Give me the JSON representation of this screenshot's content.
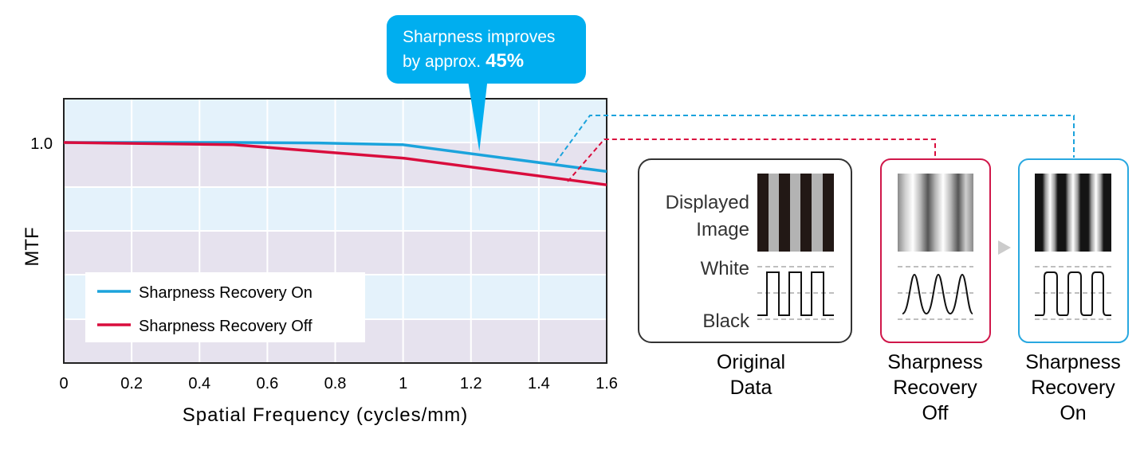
{
  "chart_data": {
    "type": "line",
    "title": "",
    "xlabel": "Spatial Frequency (cycles/mm)",
    "ylabel": "MTF",
    "xlim": [
      0,
      1.6
    ],
    "x_ticks": [
      "0",
      "0.2",
      "0.4",
      "0.6",
      "0.8",
      "1",
      "1.2",
      "1.4",
      "1.6"
    ],
    "y_ticks": [
      "1.0"
    ],
    "grid": true,
    "legend_position": "bottom-left",
    "series": [
      {
        "name": "Sharpness Recovery On",
        "color": "#1ba3dc",
        "x": [
          0,
          0.5,
          0.75,
          1.0,
          1.6
        ],
        "y": [
          1.0,
          1.0,
          0.998,
          0.99,
          0.87
        ]
      },
      {
        "name": "Sharpness Recovery Off",
        "color": "#d90d3d",
        "x": [
          0,
          0.5,
          0.75,
          1.0,
          1.6
        ],
        "y": [
          1.0,
          0.99,
          0.96,
          0.93,
          0.81
        ]
      }
    ],
    "annotation": {
      "line1": "Sharpness improves",
      "line2_prefix": "by approx.",
      "value": "45%",
      "x": 1.22,
      "color": "#00aeef"
    }
  },
  "panels": {
    "original": {
      "displayed_label_1": "Displayed",
      "displayed_label_2": "Image",
      "white_label": "White",
      "black_label": "Black",
      "caption": [
        "Original",
        "Data"
      ],
      "border_color": "#333333"
    },
    "recovery_off": {
      "caption": [
        "Sharpness",
        "Recovery",
        "Off"
      ],
      "border_color": "#d0174a"
    },
    "recovery_on": {
      "caption": [
        "Sharpness",
        "Recovery",
        "On"
      ],
      "border_color": "#29a8e0"
    }
  }
}
